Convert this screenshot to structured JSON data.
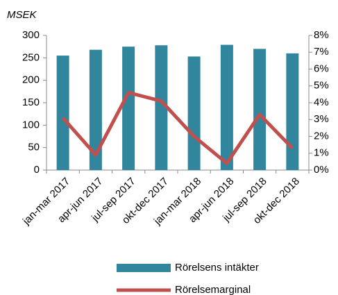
{
  "chart_data": {
    "type": "bar_line",
    "y_axis_label": "MSEK",
    "categories": [
      "jan-mar 2017",
      "apr-jun 2017",
      "jul-sep 2017",
      "okt-dec 2017",
      "jan-mar 2018",
      "apr-jun 2018",
      "jul-sep 2018",
      "okt-dec 2018"
    ],
    "series": [
      {
        "name": "Rörelsens intäkter",
        "color": "#31869e",
        "type": "bar",
        "axis": "y",
        "values": [
          255,
          268,
          275,
          278,
          253,
          279,
          270,
          260
        ]
      },
      {
        "name": "Rörelsemarginal",
        "color": "#c0504d",
        "type": "line",
        "axis": "y2",
        "values": [
          3.1,
          0.9,
          4.6,
          4.1,
          2.0,
          0.4,
          3.3,
          1.3
        ]
      }
    ],
    "ylim": [
      0,
      300
    ],
    "yticks": [
      0,
      50,
      100,
      150,
      200,
      250,
      300
    ],
    "y2lim": [
      0,
      8
    ],
    "y2ticks": [
      {
        "value": 0,
        "label": "0%"
      },
      {
        "value": 1,
        "label": "1%"
      },
      {
        "value": 2,
        "label": "2%"
      },
      {
        "value": 3,
        "label": "3%"
      },
      {
        "value": 4,
        "label": "4%"
      },
      {
        "value": 5,
        "label": "5%"
      },
      {
        "value": 6,
        "label": "6%"
      },
      {
        "value": 7,
        "label": "7%"
      },
      {
        "value": 8,
        "label": "8%"
      }
    ],
    "legend": "bottom"
  }
}
